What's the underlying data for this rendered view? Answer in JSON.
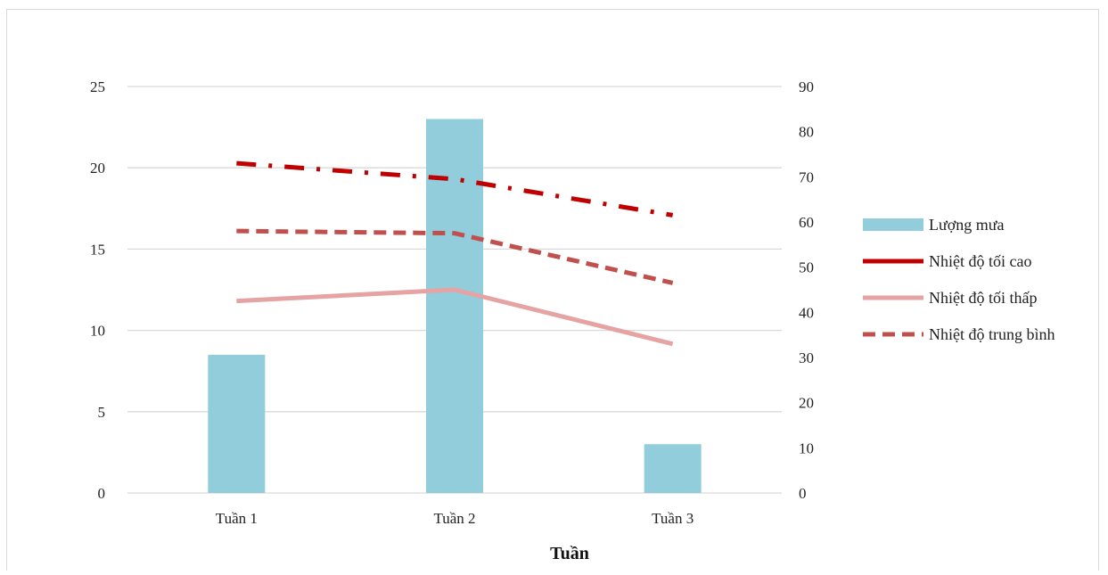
{
  "chart_data": {
    "type": "bar",
    "title": "",
    "xlabel": "Tuần",
    "categories": [
      "Tuần 1",
      "Tuần 2",
      "Tuần 3"
    ],
    "y_left": {
      "ticks": [
        0,
        5,
        10,
        15,
        20,
        25
      ],
      "ylim": [
        0,
        25
      ]
    },
    "y_right": {
      "ticks": [
        0,
        10,
        20,
        30,
        40,
        50,
        60,
        70,
        80,
        90
      ],
      "ylim": [
        0,
        90
      ]
    },
    "grid": true,
    "legend_position": "right",
    "series": [
      {
        "name": "Lượng mưa",
        "kind": "bar",
        "axis": "left",
        "values": [
          8.5,
          23,
          3
        ],
        "color": "#92cddc",
        "dash": ""
      },
      {
        "name": "Nhiệt độ tối cao",
        "kind": "line",
        "axis": "right",
        "values": [
          73,
          69.5,
          61.5
        ],
        "color": "#c00000",
        "dash": "dashdot"
      },
      {
        "name": "Nhiệt độ tối thấp",
        "kind": "line",
        "axis": "right",
        "values": [
          42.5,
          45,
          33
        ],
        "color": "#e6a3a3",
        "dash": ""
      },
      {
        "name": "Nhiệt độ trung bình",
        "kind": "line",
        "axis": "right",
        "values": [
          58,
          57.5,
          46.5
        ],
        "color": "#c0504d",
        "dash": "dash"
      }
    ]
  }
}
